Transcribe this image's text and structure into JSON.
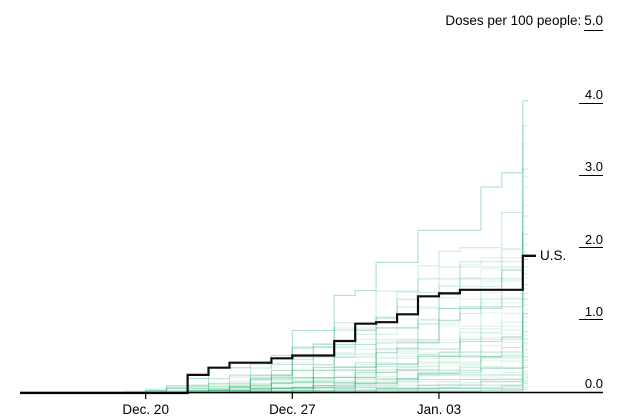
{
  "title": {
    "label": "Doses per 100 people:",
    "value": "5.0"
  },
  "colors": {
    "background_line": "#1ba766",
    "us_line": "#0d0d0d",
    "axis": "#000000",
    "text": "#000000",
    "page_background": "#ffffff"
  },
  "labels": {
    "us": "U.S."
  },
  "chart_data": {
    "type": "line",
    "subtype": "step",
    "title": "Doses per 100 people: 5.0",
    "unit": "doses per 100 people",
    "grid": "off",
    "legend": "none",
    "x_axis": {
      "domain_days": [
        0,
        24.25
      ],
      "tick_days": [
        6,
        13,
        20
      ],
      "tick_labels": [
        "Dec. 20",
        "Dec. 27",
        "Jan. 03"
      ]
    },
    "y_axis": {
      "range": [
        0,
        5
      ],
      "ticks": [
        0,
        1,
        2,
        3,
        4
      ],
      "tick_labels": [
        "0.0",
        "1.0",
        "2.0",
        "3.0",
        "4.0"
      ],
      "top_label": "5.0",
      "position": "right"
    },
    "us_series": {
      "label": "U.S.",
      "points": [
        [
          0,
          0
        ],
        [
          8,
          0.25
        ],
        [
          9,
          0.35
        ],
        [
          10,
          0.42
        ],
        [
          12,
          0.48
        ],
        [
          13,
          0.52
        ],
        [
          15,
          0.72
        ],
        [
          16,
          0.96
        ],
        [
          17,
          0.98
        ],
        [
          18,
          1.09
        ],
        [
          19,
          1.34
        ],
        [
          20,
          1.38
        ],
        [
          21,
          1.43
        ],
        [
          24,
          1.9
        ],
        [
          24.25,
          1.9
        ]
      ],
      "end_value": 1.9
    },
    "background_series_format": [
      "start_day",
      "end_value",
      "last_day_gain",
      "opacity",
      "seed"
    ],
    "background_series": [
      [
        5,
        4.05,
        1.0,
        0.35,
        1
      ],
      [
        8,
        3.7,
        1.6,
        0.18,
        2
      ],
      [
        7,
        3.45,
        1.2,
        0.15,
        3
      ],
      [
        6,
        3.1,
        0.6,
        0.22,
        4
      ],
      [
        9,
        3.0,
        1.0,
        0.12,
        5
      ],
      [
        8,
        2.85,
        0.3,
        0.15,
        6
      ],
      [
        10,
        2.6,
        0.8,
        0.12,
        7
      ],
      [
        7,
        2.45,
        0.4,
        0.2,
        8
      ],
      [
        11,
        2.3,
        0.9,
        0.1,
        9
      ],
      [
        6,
        2.2,
        0.2,
        0.25,
        10
      ],
      [
        9,
        2.05,
        0.5,
        0.14,
        11
      ],
      [
        12,
        1.95,
        0.7,
        0.12,
        12
      ],
      [
        5,
        1.85,
        0.15,
        0.3,
        13
      ],
      [
        8,
        1.75,
        0.4,
        0.12,
        14
      ],
      [
        10,
        1.65,
        0.5,
        0.18,
        15
      ],
      [
        13,
        1.6,
        0.6,
        0.1,
        16
      ],
      [
        7,
        1.5,
        0.2,
        0.22,
        17
      ],
      [
        9,
        1.45,
        0.35,
        0.12,
        18
      ],
      [
        11,
        1.38,
        0.4,
        0.15,
        19
      ],
      [
        6,
        1.3,
        0.1,
        0.28,
        20
      ],
      [
        8,
        1.22,
        0.3,
        0.14,
        21
      ],
      [
        12,
        1.15,
        0.45,
        0.1,
        22
      ],
      [
        4,
        1.1,
        0.15,
        0.32,
        23
      ],
      [
        10,
        1.05,
        0.25,
        0.16,
        24
      ],
      [
        7,
        0.98,
        0.2,
        0.2,
        25
      ],
      [
        13,
        0.92,
        0.35,
        0.12,
        26
      ],
      [
        9,
        0.85,
        0.15,
        0.25,
        27
      ],
      [
        11,
        0.8,
        0.3,
        0.12,
        28
      ],
      [
        6,
        0.75,
        0.1,
        0.3,
        29
      ],
      [
        8,
        0.7,
        0.2,
        0.15,
        30
      ],
      [
        14,
        0.65,
        0.3,
        0.1,
        31
      ],
      [
        10,
        0.6,
        0.15,
        0.2,
        32
      ],
      [
        2,
        0.68,
        0.05,
        0.12,
        33
      ],
      [
        12,
        0.55,
        0.2,
        0.14,
        34
      ],
      [
        7,
        0.5,
        0.1,
        0.25,
        35
      ],
      [
        9,
        0.46,
        0.15,
        0.12,
        36
      ],
      [
        15,
        0.42,
        0.2,
        0.1,
        37
      ],
      [
        11,
        0.38,
        0.1,
        0.18,
        38
      ],
      [
        5,
        0.35,
        0.05,
        0.3,
        39
      ],
      [
        13,
        0.3,
        0.12,
        0.12,
        40
      ],
      [
        8,
        0.27,
        0.08,
        0.2,
        41
      ],
      [
        10,
        0.24,
        0.1,
        0.15,
        42
      ],
      [
        16,
        0.2,
        0.1,
        0.12,
        43
      ],
      [
        12,
        0.17,
        0.06,
        0.25,
        44
      ],
      [
        6,
        0.14,
        0.04,
        0.3,
        45
      ],
      [
        14,
        0.11,
        0.05,
        0.15,
        46
      ],
      [
        9,
        0.08,
        0.03,
        0.25,
        47
      ],
      [
        11,
        0.05,
        0.02,
        0.2,
        48
      ],
      [
        3,
        0.22,
        0.0,
        0.15,
        49
      ],
      [
        4,
        0.45,
        0.0,
        0.1,
        50
      ]
    ]
  }
}
